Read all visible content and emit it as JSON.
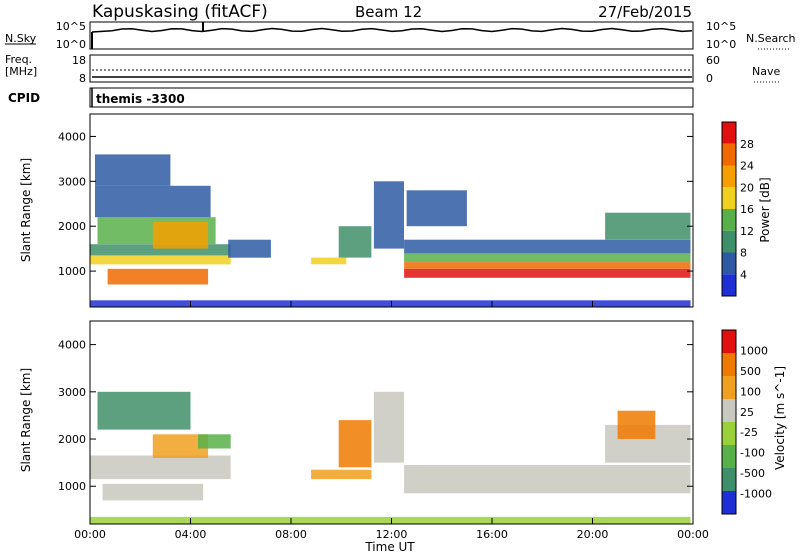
{
  "header": {
    "station": "Kapuskasing (fitACF)",
    "beam": "Beam 12",
    "date": "27/Feb/2015"
  },
  "noise_panel": {
    "left_label": "N.Sky",
    "right_label": "N.Search",
    "left_ticks": [
      "10^5",
      "10^0"
    ],
    "right_ticks": [
      "10^5",
      "10^0"
    ]
  },
  "freq_panel": {
    "left_label_1": "Freq.",
    "left_label_2": "[MHz]",
    "right_label": "Nave",
    "left_ticks": [
      "18",
      "8"
    ],
    "right_ticks": [
      "60",
      "0"
    ]
  },
  "cpid_panel": {
    "label": "CPID",
    "value": "themis -3300"
  },
  "colors": {
    "power_scale": [
      "#1f2fd6",
      "#2e5aa3",
      "#3f8f6a",
      "#58b04a",
      "#f0d020",
      "#f5a000",
      "#f06a00",
      "#e01010"
    ],
    "velocity_scale": [
      "#1f2fd6",
      "#3f8f6a",
      "#58b04a",
      "#9ad03a",
      "#c8c8c0",
      "#f0a020",
      "#f07a00",
      "#e01010"
    ],
    "ground_scatter": "#c8c8c0"
  },
  "chart_data": [
    {
      "type": "heatmap",
      "name": "power",
      "ylabel": "Slant Range [km]",
      "ylim": [
        200,
        4500
      ],
      "yticks": [
        "1000",
        "2000",
        "3000",
        "4000"
      ],
      "xlim": [
        "00:00",
        "24:00"
      ],
      "colorbar": {
        "label": "Power [dB]",
        "ticks": [
          "28",
          "24",
          "20",
          "16",
          "12",
          "8",
          "4"
        ]
      },
      "regions": [
        {
          "t0": 0.0,
          "t1": 5.6,
          "r0": 1150,
          "r1": 1350,
          "level": 4
        },
        {
          "t0": 0.0,
          "t1": 5.6,
          "r0": 1350,
          "r1": 1600,
          "level": 2
        },
        {
          "t0": 0.3,
          "t1": 5.0,
          "r0": 1600,
          "r1": 2200,
          "level": 3
        },
        {
          "t0": 2.5,
          "t1": 4.7,
          "r0": 1500,
          "r1": 2100,
          "level": 5
        },
        {
          "t0": 0.7,
          "t1": 4.7,
          "r0": 700,
          "r1": 1050,
          "level": 6
        },
        {
          "t0": 0.2,
          "t1": 4.8,
          "r0": 2200,
          "r1": 2900,
          "level": 1
        },
        {
          "t0": 0.2,
          "t1": 3.2,
          "r0": 2900,
          "r1": 3600,
          "level": 1
        },
        {
          "t0": 5.5,
          "t1": 7.2,
          "r0": 1300,
          "r1": 1700,
          "level": 1
        },
        {
          "t0": 8.8,
          "t1": 10.2,
          "r0": 1150,
          "r1": 1300,
          "level": 4
        },
        {
          "t0": 9.9,
          "t1": 11.2,
          "r0": 1300,
          "r1": 2000,
          "level": 2
        },
        {
          "t0": 11.3,
          "t1": 12.5,
          "r0": 1500,
          "r1": 3000,
          "level": 1
        },
        {
          "t0": 12.5,
          "t1": 23.9,
          "r0": 850,
          "r1": 1050,
          "level": 7
        },
        {
          "t0": 12.5,
          "t1": 23.9,
          "r0": 1050,
          "r1": 1200,
          "level": 6
        },
        {
          "t0": 12.5,
          "t1": 23.9,
          "r0": 1200,
          "r1": 1400,
          "level": 3
        },
        {
          "t0": 12.5,
          "t1": 23.9,
          "r0": 1400,
          "r1": 1700,
          "level": 1
        },
        {
          "t0": 20.5,
          "t1": 23.9,
          "r0": 1700,
          "r1": 2300,
          "level": 2
        },
        {
          "t0": 12.6,
          "t1": 15.0,
          "r0": 2000,
          "r1": 2800,
          "level": 1
        },
        {
          "t0": 0.0,
          "t1": 23.9,
          "r0": 200,
          "r1": 350,
          "level": 0
        }
      ]
    },
    {
      "type": "heatmap",
      "name": "velocity",
      "ylabel": "Slant Range [km]",
      "xlabel": "Time UT",
      "ylim": [
        200,
        4500
      ],
      "yticks": [
        "1000",
        "2000",
        "3000",
        "4000"
      ],
      "xticks": [
        "00:00",
        "04:00",
        "08:00",
        "12:00",
        "16:00",
        "20:00",
        "00:00"
      ],
      "xlim": [
        "00:00",
        "24:00"
      ],
      "colorbar": {
        "label": "Velocity [m s^-1]",
        "ticks": [
          "1000",
          "500",
          "100",
          "25",
          "-25",
          "-100",
          "-500",
          "-1000"
        ]
      },
      "regions": [
        {
          "t0": 0.0,
          "t1": 5.6,
          "r0": 1150,
          "r1": 1650,
          "level": 4
        },
        {
          "t0": 0.5,
          "t1": 4.5,
          "r0": 700,
          "r1": 1050,
          "level": 4
        },
        {
          "t0": 2.5,
          "t1": 4.7,
          "r0": 1600,
          "r1": 2100,
          "level": 5
        },
        {
          "t0": 0.3,
          "t1": 4.0,
          "r0": 2200,
          "r1": 3000,
          "level": 1
        },
        {
          "t0": 4.3,
          "t1": 5.6,
          "r0": 1800,
          "r1": 2100,
          "level": 2
        },
        {
          "t0": 8.8,
          "t1": 11.2,
          "r0": 1150,
          "r1": 1350,
          "level": 5
        },
        {
          "t0": 9.9,
          "t1": 11.2,
          "r0": 1400,
          "r1": 2400,
          "level": 6
        },
        {
          "t0": 11.3,
          "t1": 12.5,
          "r0": 1500,
          "r1": 3000,
          "level": 4
        },
        {
          "t0": 12.5,
          "t1": 23.9,
          "r0": 850,
          "r1": 1450,
          "level": 4
        },
        {
          "t0": 20.5,
          "t1": 23.9,
          "r0": 1500,
          "r1": 2300,
          "level": 4
        },
        {
          "t0": 21.0,
          "t1": 22.5,
          "r0": 2000,
          "r1": 2600,
          "level": 6
        },
        {
          "t0": 0.0,
          "t1": 23.9,
          "r0": 200,
          "r1": 350,
          "level": 3
        }
      ]
    }
  ]
}
